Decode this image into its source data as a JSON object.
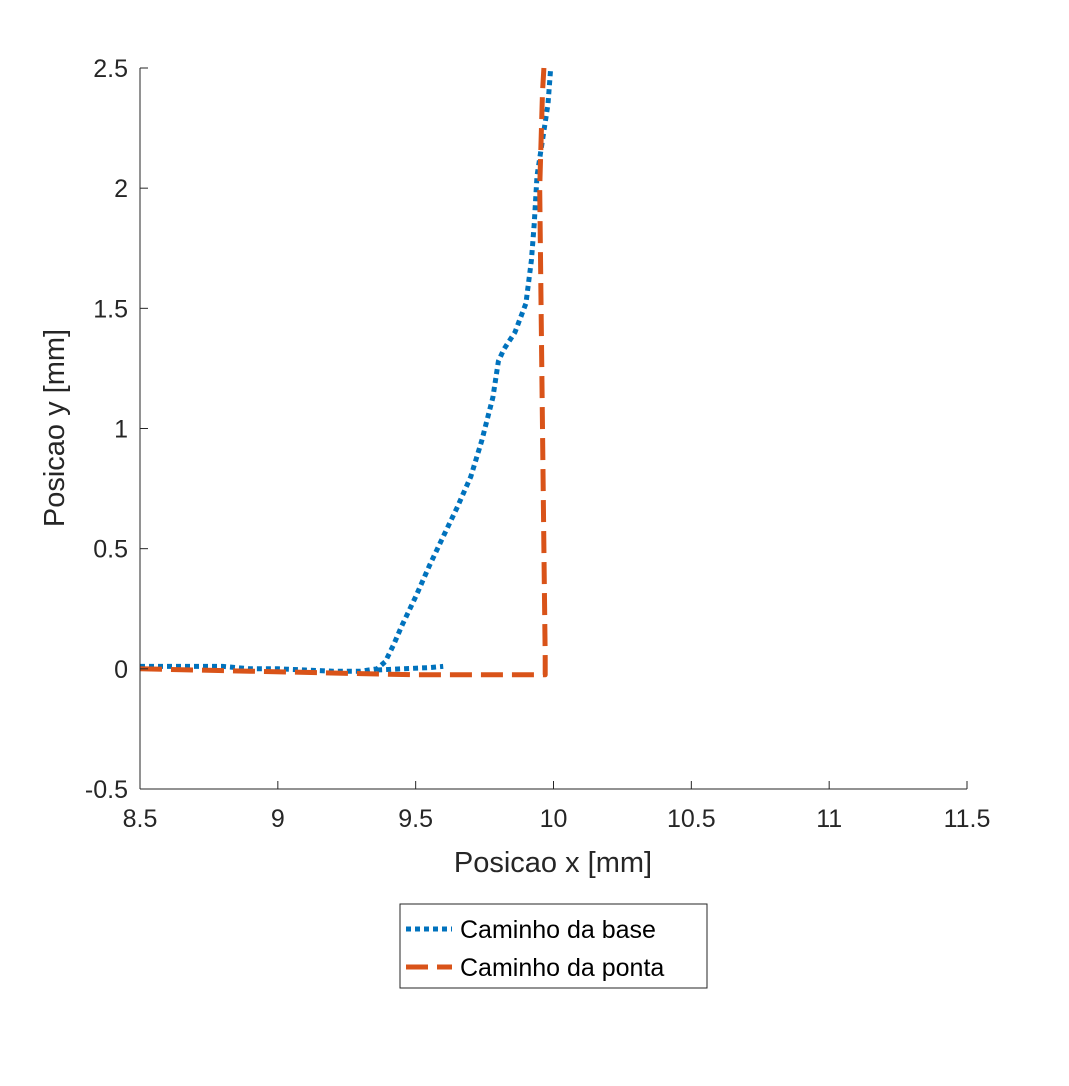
{
  "chart_data": {
    "type": "line",
    "xlabel": "Posicao x [mm]",
    "ylabel": "Posicao y [mm]",
    "xlim": [
      8.5,
      11.5
    ],
    "ylim": [
      -0.5,
      2.5
    ],
    "xticks": [
      8.5,
      9,
      9.5,
      10,
      10.5,
      11,
      11.5
    ],
    "xtick_labels": [
      "8.5",
      "9",
      "9.5",
      "10",
      "10.5",
      "11",
      "11.5"
    ],
    "yticks": [
      -0.5,
      0,
      0.5,
      1,
      1.5,
      2,
      2.5
    ],
    "ytick_labels": [
      "-0.5",
      "0",
      "0.5",
      "1",
      "1.5",
      "2",
      "2.5"
    ],
    "grid": false,
    "legend_position": "bottom-center-outside",
    "series": [
      {
        "name": "Caminho da base",
        "color": "#0072BD",
        "style": "dotted",
        "x": [
          8.5,
          8.6,
          8.7,
          8.8,
          8.9,
          9.0,
          9.1,
          9.2,
          9.3,
          9.36,
          9.39,
          9.42,
          9.45,
          9.5,
          9.55,
          9.6,
          9.65,
          9.7,
          9.74,
          9.78,
          9.8,
          9.82,
          9.86,
          9.9,
          9.92,
          9.93,
          9.94,
          9.96,
          9.98,
          9.99
        ],
        "y": [
          0.01,
          0.01,
          0.01,
          0.01,
          0.0,
          0.0,
          -0.005,
          -0.01,
          -0.01,
          0.0,
          0.03,
          0.1,
          0.18,
          0.3,
          0.43,
          0.55,
          0.67,
          0.8,
          0.95,
          1.13,
          1.28,
          1.33,
          1.4,
          1.52,
          1.7,
          1.85,
          2.05,
          2.2,
          2.35,
          2.5
        ]
      },
      {
        "name": "Caminho da base",
        "color": "#0072BD",
        "style": "dotted",
        "x": [
          9.36,
          9.45,
          9.55,
          9.6
        ],
        "y": [
          -0.005,
          0.0,
          0.005,
          0.01
        ]
      },
      {
        "name": "Caminho da ponta",
        "color": "#D95319",
        "style": "dashed",
        "x": [
          8.5,
          8.7,
          8.9,
          9.1,
          9.3,
          9.5,
          9.7,
          9.85,
          9.97,
          9.97,
          9.965,
          9.96,
          9.955,
          9.95,
          9.955,
          9.96,
          9.965
        ],
        "y": [
          0.0,
          -0.005,
          -0.01,
          -0.015,
          -0.02,
          -0.025,
          -0.025,
          -0.025,
          -0.025,
          0.05,
          0.5,
          1.0,
          1.5,
          2.0,
          2.2,
          2.4,
          2.5
        ]
      }
    ],
    "legend": {
      "entries": [
        {
          "label": "Caminho da base",
          "color": "#0072BD",
          "style": "dotted"
        },
        {
          "label": "Caminho da ponta",
          "color": "#D95319",
          "style": "dashed"
        }
      ]
    }
  }
}
